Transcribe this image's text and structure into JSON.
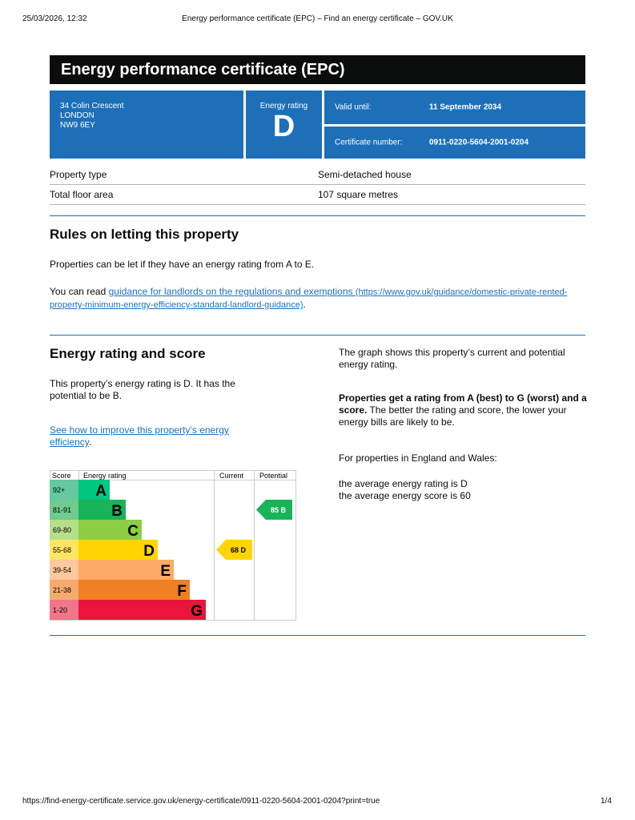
{
  "browser": {
    "datetime": "25/03/2026, 12:32",
    "page_title": "Energy performance certificate (EPC) – Find an energy certificate – GOV.UK",
    "url": "https://find-energy-certificate.service.gov.uk/energy-certificate/0911-0220-5604-2001-0204?print=true",
    "page_count": "1/4"
  },
  "certificate": {
    "title": "Energy performance certificate (EPC)",
    "address": [
      "34 Colin Crescent",
      "LONDON",
      "NW9 6EY"
    ],
    "rating_label": "Energy rating",
    "rating": "D",
    "valid_label": "Valid until:",
    "valid_value": "11 September 2034",
    "cert_label": "Certificate number:",
    "cert_value": "0911-0220-5604-2001-0204"
  },
  "property": [
    {
      "label": "Property type",
      "value": "Semi-detached house"
    },
    {
      "label": "Total floor area",
      "value": "107 square metres"
    }
  ],
  "letting": {
    "heading": "Rules on letting this property",
    "text1": "Properties can be let if they have an energy rating from A to E.",
    "text2_prefix": "You can read ",
    "link": "guidance for landlords on the regulations and exemptions",
    "link_url": "(https://www.gov.uk/guidance/domestic-private-rented-property-minimum-energy-efficiency-standard-landlord-guidance)",
    "text2_suffix": "."
  },
  "energy": {
    "heading": "Energy rating and score",
    "text1": "This property’s energy rating is D. It has the potential to be B.",
    "link": "See how to improve this property’s energy efficiency",
    "link_suffix": ".",
    "right1": "The graph shows this property’s current and potential energy rating.",
    "right2_bold": "Properties get a rating from A (best) to G (worst) and a score.",
    "right2_rest": " The better the rating and score, the lower your energy bills are likely to be.",
    "right3": "For properties in England and Wales:",
    "right4": "the average energy rating is D",
    "right5": "the average energy score is 60"
  },
  "chart_data": {
    "type": "bar",
    "headers": [
      "Score",
      "Energy rating",
      "Current",
      "Potential"
    ],
    "bands": [
      {
        "letter": "A",
        "range": "92+",
        "color": "#00c781",
        "light": "#64c8a0"
      },
      {
        "letter": "B",
        "range": "81-91",
        "color": "#19b459",
        "light": "#6fcb8e"
      },
      {
        "letter": "C",
        "range": "69-80",
        "color": "#8dce46",
        "light": "#b5df8a"
      },
      {
        "letter": "D",
        "range": "55-68",
        "color": "#ffd500",
        "light": "#ffe566"
      },
      {
        "letter": "E",
        "range": "39-54",
        "color": "#fcaa65",
        "light": "#fdc89c"
      },
      {
        "letter": "F",
        "range": "21-38",
        "color": "#ef8023",
        "light": "#f5ab6e"
      },
      {
        "letter": "G",
        "range": "1-20",
        "color": "#e9153b",
        "light": "#f07689"
      }
    ],
    "current": {
      "score": 68,
      "band": "D",
      "label": "68  D"
    },
    "potential": {
      "score": 85,
      "band": "B",
      "label": "85  B"
    }
  }
}
